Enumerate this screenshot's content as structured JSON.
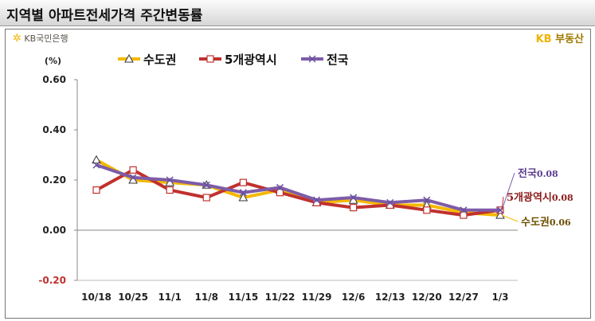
{
  "title": "지역별 아파트전세가격 주간변동률",
  "brand_left": "KB국민은행",
  "brand_right_kb": "KB",
  "brand_right_rest": "부동산",
  "colors": {
    "metro": "#f5b800",
    "five": "#c0312e",
    "nation": "#7d5ca8"
  },
  "chart_data": {
    "type": "line",
    "unit_label": "(%)",
    "categories": [
      "10/18",
      "10/25",
      "11/1",
      "11/8",
      "11/15",
      "11/22",
      "11/29",
      "12/6",
      "12/13",
      "12/20",
      "12/27",
      "1/3"
    ],
    "ylim": [
      -0.2,
      0.6
    ],
    "yticks": [
      "0.60",
      "0.40",
      "0.20",
      "0.00",
      "-0.20"
    ],
    "series": [
      {
        "name": "수도권",
        "key": "metro",
        "marker": "triangle",
        "values": [
          0.28,
          0.2,
          0.19,
          0.18,
          0.13,
          0.16,
          0.11,
          0.12,
          0.1,
          0.1,
          0.07,
          0.06
        ]
      },
      {
        "name": "5개광역시",
        "key": "five",
        "marker": "square",
        "values": [
          0.16,
          0.24,
          0.16,
          0.13,
          0.19,
          0.15,
          0.11,
          0.09,
          0.1,
          0.08,
          0.06,
          0.08
        ]
      },
      {
        "name": "전국",
        "key": "nation",
        "marker": "x",
        "values": [
          0.26,
          0.21,
          0.2,
          0.18,
          0.15,
          0.17,
          0.12,
          0.13,
          0.11,
          0.12,
          0.08,
          0.08
        ]
      }
    ],
    "callouts": [
      {
        "key": "nation",
        "label": "전국",
        "value": "0.08"
      },
      {
        "key": "five",
        "label": "5개광역시",
        "value": "0.08"
      },
      {
        "key": "metro",
        "label": "수도권",
        "value": "0.06"
      }
    ]
  }
}
